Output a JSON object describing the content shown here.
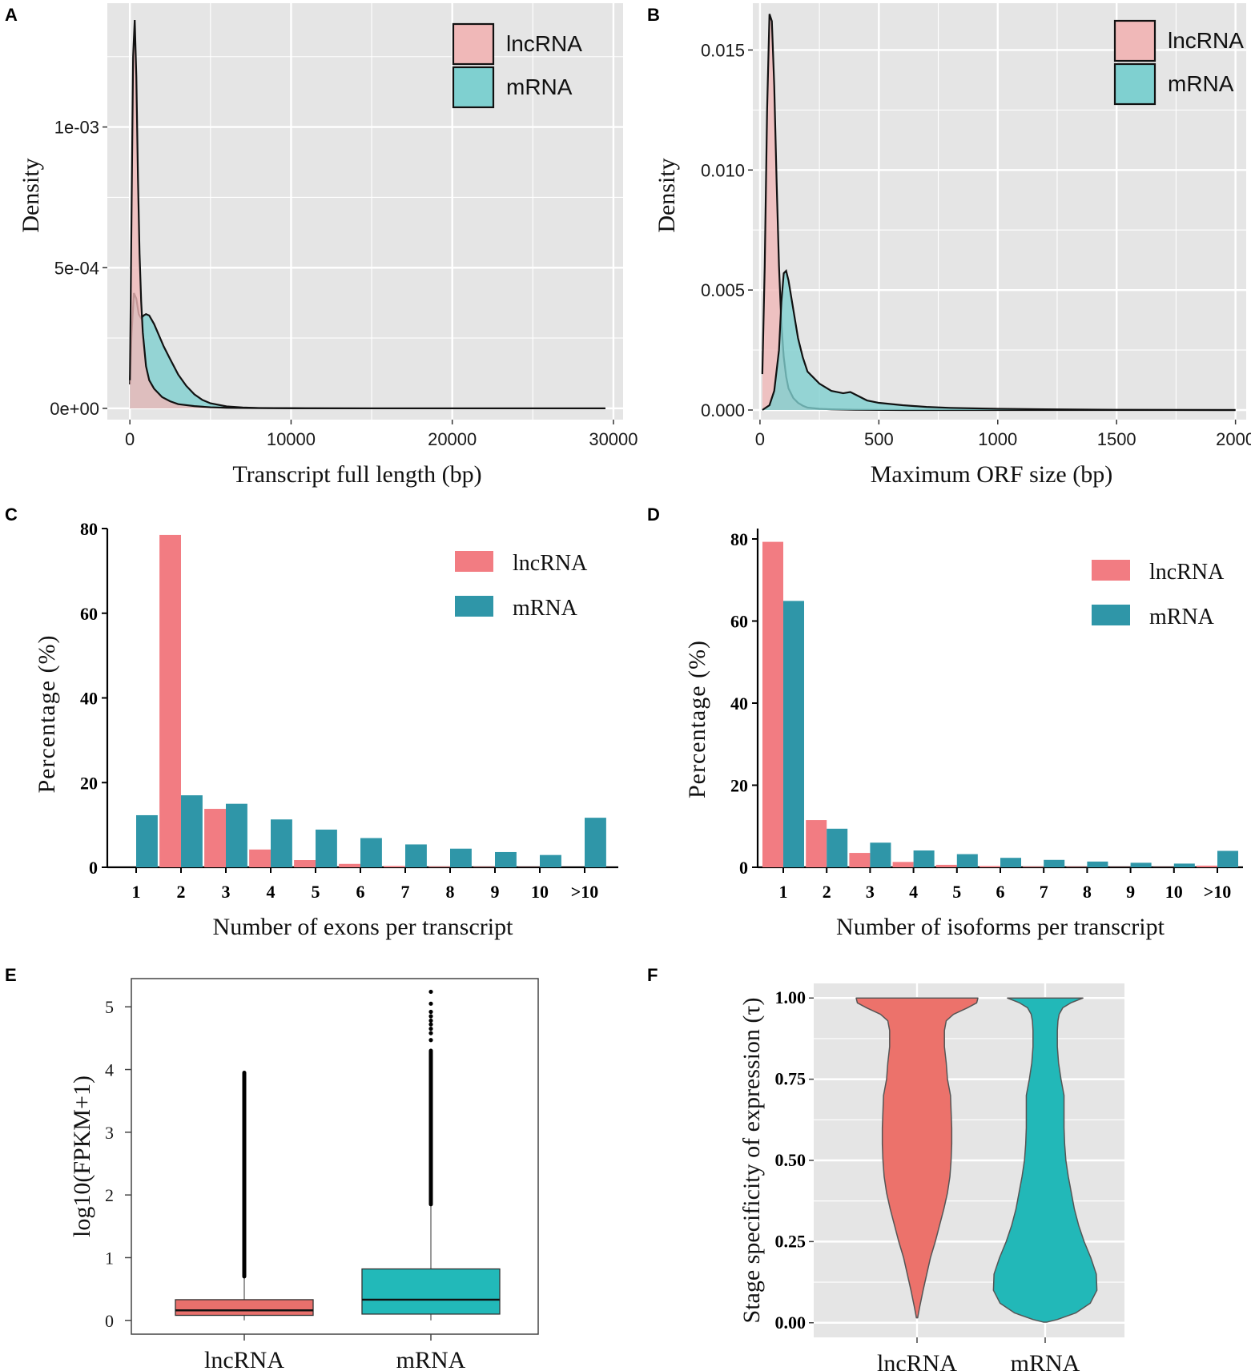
{
  "panels": {
    "a": "A",
    "b": "B",
    "c": "C",
    "d": "D",
    "e": "E",
    "f": "F"
  },
  "colors": {
    "lnc_fill": "#f0b8b8",
    "mrna_fill": "#7fd0d0",
    "bar_lnc": "#f27c82",
    "bar_mrna": "#2f96a8",
    "box_lnc": "#e8706c",
    "box_mrna": "#22b9b9",
    "violin_lnc": "#ec726b",
    "violin_mrna": "#22b8b8"
  },
  "chart_data": [
    {
      "id": "A",
      "type": "area",
      "title": "",
      "xlabel": "Transcript full length (bp)",
      "ylabel": "Density",
      "xlim": [
        -1400,
        30600
      ],
      "ylim": [
        -4e-05,
        0.00144
      ],
      "xticks": [
        0,
        10000,
        20000,
        30000
      ],
      "xtick_labels": [
        "0",
        "10000",
        "20000",
        "30000"
      ],
      "yticks": [
        0,
        0.0005,
        0.001
      ],
      "ytick_labels": [
        "0e+00",
        "5e-04",
        "1e-03"
      ],
      "legend": [
        "lncRNA",
        "mRNA"
      ],
      "legend_position": "top-right",
      "series": [
        {
          "name": "mRNA",
          "x": [
            0,
            100,
            250,
            400,
            550,
            700,
            850,
            1000,
            1200,
            1500,
            1800,
            2100,
            2500,
            3000,
            3500,
            4000,
            4500,
            5000,
            6000,
            7000,
            8000,
            10000,
            15000,
            20000,
            29500
          ],
          "y": [
            8.5e-05,
            0.00026,
            0.00041,
            0.00039,
            0.000335,
            0.00032,
            0.00033,
            0.000335,
            0.00033,
            0.0003,
            0.00026,
            0.00022,
            0.000175,
            0.00012,
            8e-05,
            5e-05,
            3e-05,
            1.8e-05,
            7e-06,
            3e-06,
            1.5e-06,
            5e-07,
            0,
            0,
            0
          ]
        },
        {
          "name": "lncRNA",
          "x": [
            0,
            100,
            200,
            300,
            400,
            500,
            600,
            700,
            800,
            1000,
            1200,
            1500,
            2000,
            2500,
            3000,
            4000,
            5000,
            6000,
            8000,
            10000,
            15000,
            20000,
            29500
          ],
          "y": [
            0.0001,
            0.00068,
            0.00125,
            0.00138,
            0.00118,
            0.00082,
            0.00055,
            0.00038,
            0.00027,
            0.00015,
            0.0001,
            7e-05,
            4e-05,
            2.5e-05,
            1.5e-05,
            8e-06,
            4e-06,
            2e-06,
            1e-06,
            5e-07,
            0,
            0,
            0
          ]
        }
      ]
    },
    {
      "id": "B",
      "type": "area",
      "title": "",
      "xlabel": "Maximum ORF size (bp)",
      "ylabel": "Density",
      "xlim": [
        -30,
        2045
      ],
      "ylim": [
        -0.0004,
        0.01695
      ],
      "xticks": [
        0,
        500,
        1000,
        1500,
        2000
      ],
      "xtick_labels": [
        "0",
        "500",
        "1000",
        "1500",
        "2000"
      ],
      "yticks": [
        0,
        0.005,
        0.01,
        0.015
      ],
      "ytick_labels": [
        "0.000",
        "0.005",
        "0.010",
        "0.015"
      ],
      "legend": [
        "lncRNA",
        "mRNA"
      ],
      "legend_position": "top-right",
      "series": [
        {
          "name": "lncRNA",
          "x": [
            10,
            20,
            30,
            40,
            50,
            60,
            70,
            80,
            90,
            100,
            110,
            120,
            140,
            160,
            180,
            200,
            250,
            300,
            400,
            600,
            1000,
            2000
          ],
          "y": [
            0.0015,
            0.006,
            0.0125,
            0.0165,
            0.0162,
            0.0135,
            0.0095,
            0.006,
            0.0036,
            0.0022,
            0.0014,
            0.0009,
            0.0005,
            0.0003,
            0.00018,
            0.0001,
            5e-05,
            3e-05,
            1e-05,
            0,
            0,
            0
          ]
        },
        {
          "name": "mRNA",
          "x": [
            10,
            40,
            60,
            80,
            90,
            100,
            110,
            120,
            140,
            160,
            180,
            200,
            250,
            300,
            350,
            380,
            400,
            450,
            500,
            600,
            700,
            800,
            1000,
            1200,
            1500,
            2000
          ],
          "y": [
            0,
            0.0002,
            0.0008,
            0.0025,
            0.0045,
            0.0057,
            0.0058,
            0.0054,
            0.0042,
            0.003,
            0.0022,
            0.0016,
            0.0011,
            0.0008,
            0.0007,
            0.00075,
            0.00065,
            0.0004,
            0.0003,
            0.0002,
            0.00013,
            9e-05,
            5e-05,
            3e-05,
            1e-05,
            0
          ]
        }
      ]
    },
    {
      "id": "C",
      "type": "bar",
      "title": "",
      "xlabel": "Number of exons per transcript",
      "ylabel": "Percentage (%)",
      "ylim": [
        0,
        80
      ],
      "yticks": [
        0,
        20,
        40,
        60,
        80
      ],
      "categories": [
        "1",
        "2",
        "3",
        "4",
        "5",
        "6",
        "7",
        "8",
        "9",
        "10",
        ">10"
      ],
      "legend": [
        "lncRNA",
        "mRNA"
      ],
      "legend_position": "top-right",
      "series": [
        {
          "name": "lncRNA",
          "values": [
            0,
            78.5,
            13.8,
            4.2,
            1.7,
            0.8,
            0.3,
            0.15,
            0.1,
            0.05,
            0
          ]
        },
        {
          "name": "mRNA",
          "values": [
            12.3,
            17.0,
            15.0,
            11.3,
            8.9,
            6.9,
            5.4,
            4.4,
            3.6,
            2.9,
            11.7
          ]
        }
      ]
    },
    {
      "id": "D",
      "type": "bar",
      "title": "",
      "xlabel": "Number of isoforms per transcript",
      "ylabel": "Percentage (%)",
      "ylim": [
        0,
        80
      ],
      "yticks": [
        0,
        20,
        40,
        60,
        80
      ],
      "categories": [
        "1",
        "2",
        "3",
        "4",
        "5",
        "6",
        "7",
        "8",
        "9",
        "10",
        ">10"
      ],
      "legend": [
        "lncRNA",
        "mRNA"
      ],
      "legend_position": "top-right",
      "series": [
        {
          "name": "lncRNA",
          "values": [
            79.3,
            11.5,
            3.5,
            1.3,
            0.6,
            0.3,
            0.15,
            0.1,
            0.05,
            0.05,
            0.4
          ]
        },
        {
          "name": "mRNA",
          "values": [
            64.9,
            9.4,
            6.0,
            4.1,
            3.2,
            2.3,
            1.8,
            1.4,
            1.1,
            0.9,
            4.0
          ]
        }
      ]
    },
    {
      "id": "E",
      "type": "box",
      "title": "",
      "xlabel": "",
      "ylabel": "log10(FPKM+1)",
      "ylim": [
        -0.22,
        5.45
      ],
      "yticks": [
        0,
        1,
        2,
        3,
        4,
        5
      ],
      "categories": [
        "lncRNA",
        "mRNA"
      ],
      "boxes": [
        {
          "name": "lncRNA",
          "min": 0.0,
          "q1": 0.08,
          "median": 0.16,
          "q3": 0.33,
          "whisker_high": 0.7,
          "outlier_max": 3.95,
          "extra_outliers": []
        },
        {
          "name": "mRNA",
          "min": 0.0,
          "q1": 0.1,
          "median": 0.33,
          "q3": 0.82,
          "whisker_high": 1.85,
          "outlier_max": 4.3,
          "extra_outliers": [
            4.47,
            4.58,
            4.65,
            4.72,
            4.78,
            4.85,
            4.92,
            5.05,
            5.24
          ]
        }
      ]
    },
    {
      "id": "F",
      "type": "violin",
      "title": "",
      "xlabel": "",
      "ylabel": "Stage specificity of expression (τ)",
      "ylim": [
        -0.045,
        1.045
      ],
      "yticks": [
        0,
        0.25,
        0.5,
        0.75,
        1.0
      ],
      "ytick_labels": [
        "0.00",
        "0.25",
        "0.50",
        "0.75",
        "1.00"
      ],
      "categories": [
        "lncRNA",
        "mRNA"
      ],
      "violins": [
        {
          "name": "lncRNA",
          "y": [
            0.015,
            0.05,
            0.1,
            0.15,
            0.2,
            0.25,
            0.3,
            0.35,
            0.4,
            0.45,
            0.5,
            0.55,
            0.6,
            0.65,
            0.7,
            0.75,
            0.8,
            0.85,
            0.9,
            0.93,
            0.95,
            0.97,
            0.985,
            1.0
          ],
          "width": [
            0.01,
            0.045,
            0.1,
            0.16,
            0.22,
            0.3,
            0.37,
            0.44,
            0.5,
            0.54,
            0.56,
            0.57,
            0.57,
            0.56,
            0.55,
            0.5,
            0.48,
            0.45,
            0.45,
            0.48,
            0.6,
            0.83,
            0.98,
            1.0
          ]
        },
        {
          "name": "mRNA",
          "y": [
            0.002,
            0.01,
            0.03,
            0.06,
            0.1,
            0.15,
            0.2,
            0.25,
            0.3,
            0.35,
            0.4,
            0.45,
            0.5,
            0.55,
            0.6,
            0.65,
            0.7,
            0.75,
            0.8,
            0.85,
            0.9,
            0.93,
            0.95,
            0.97,
            0.985,
            1.0
          ],
          "width": [
            0.03,
            0.2,
            0.5,
            0.74,
            0.85,
            0.84,
            0.75,
            0.64,
            0.55,
            0.48,
            0.43,
            0.38,
            0.34,
            0.32,
            0.31,
            0.31,
            0.31,
            0.26,
            0.22,
            0.2,
            0.2,
            0.21,
            0.23,
            0.29,
            0.42,
            0.62
          ]
        }
      ]
    }
  ]
}
